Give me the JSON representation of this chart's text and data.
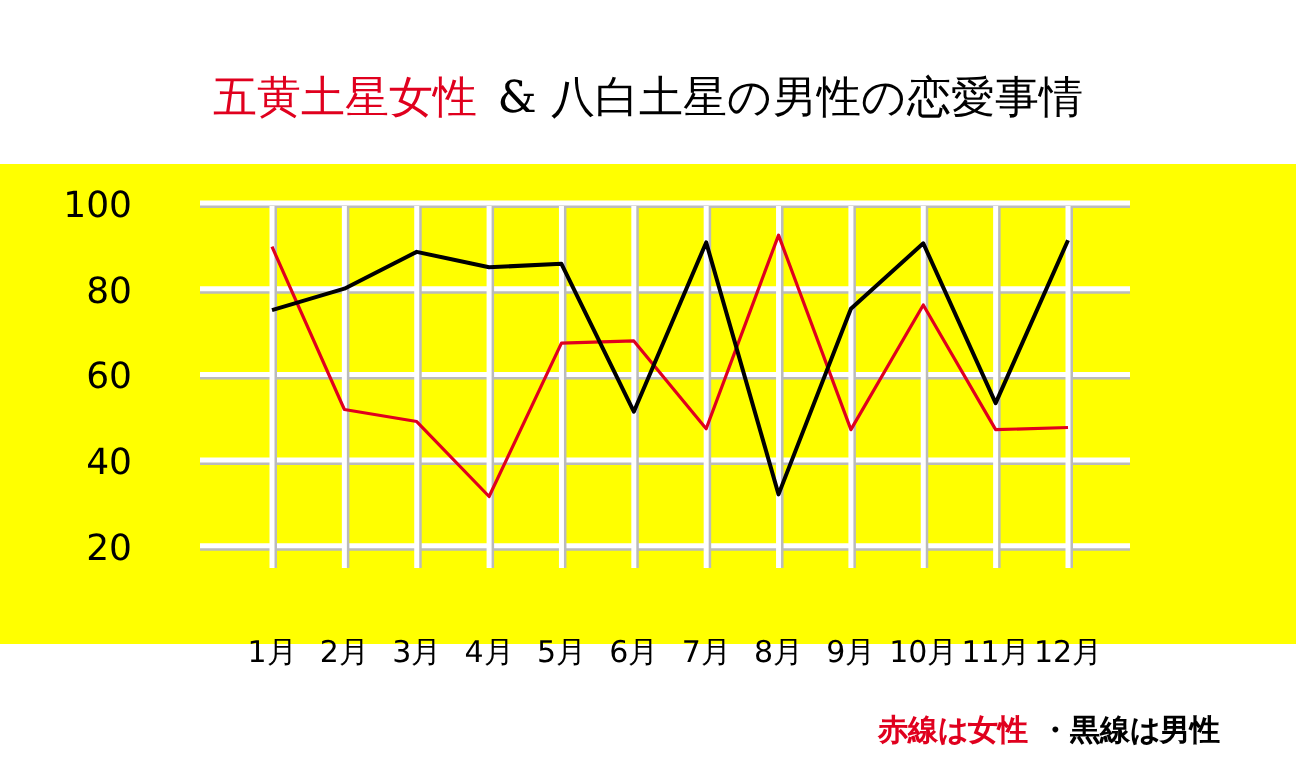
{
  "chart_data": {
    "type": "line",
    "title": "五黄土星女性",
    "subtitle": "& 八白土星の男性の恋愛事情",
    "categories": [
      "1月",
      "2月",
      "3月",
      "4月",
      "5月",
      "6月",
      "7月",
      "8月",
      "9月",
      "10月",
      "11月",
      "12月"
    ],
    "series": [
      {
        "name": "赤線は女性",
        "color": "#e0001e",
        "values": [
          89.8,
          51.8,
          49,
          31.5,
          67.3,
          67.8,
          47.3,
          92.5,
          47.1,
          76.2,
          47.1,
          47.6
        ]
      },
      {
        "name": "黒線は男性",
        "color": "#000000",
        "values": [
          75,
          80,
          88.6,
          85,
          85.8,
          51.3,
          90.8,
          32,
          75.3,
          90.6,
          53.3,
          91.3
        ]
      }
    ],
    "ylim": [
      15,
      100
    ],
    "yticks": [
      20,
      40,
      60,
      80,
      100
    ],
    "grid": true,
    "legend": "bottom right",
    "annotations": [
      "・"
    ],
    "marker": "none",
    "line_style": "solid"
  }
}
